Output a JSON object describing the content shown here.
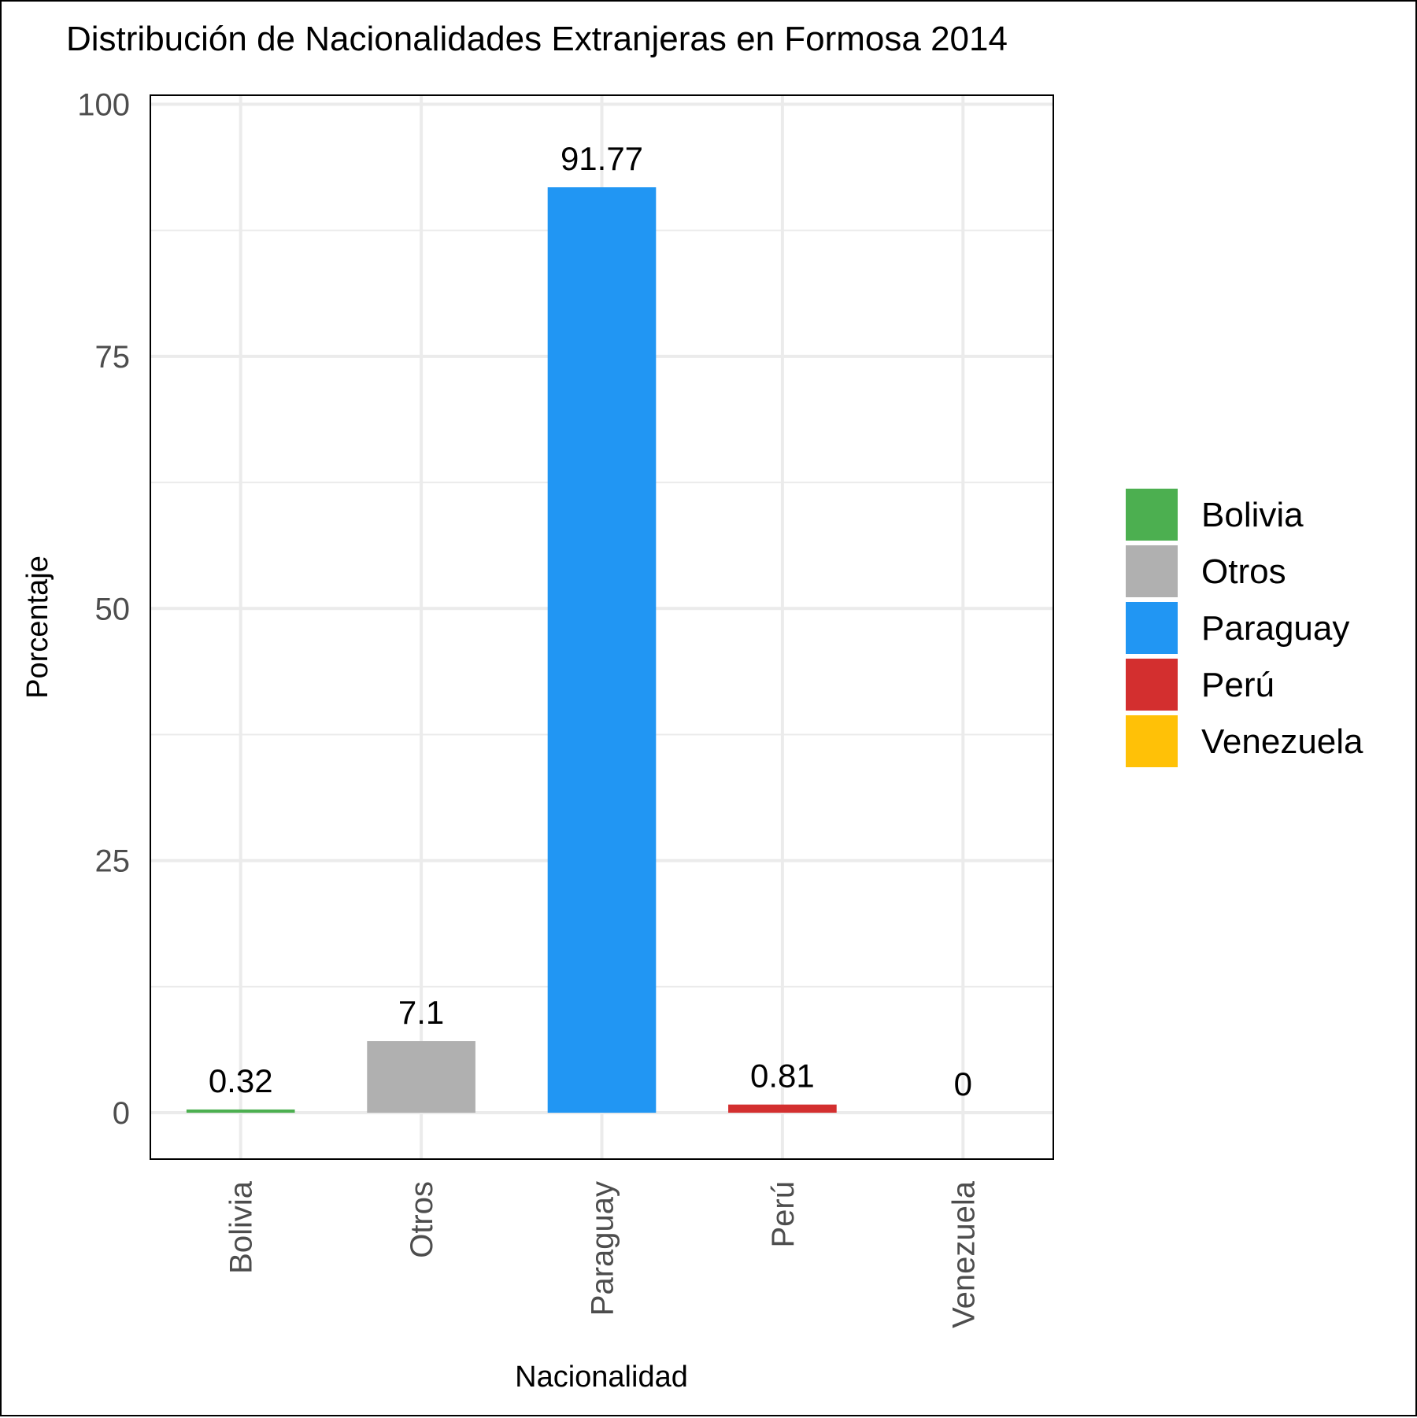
{
  "chart_data": {
    "type": "bar",
    "title": "Distribución de Nacionalidades Extranjeras en Formosa 2014",
    "xlabel": "Nacionalidad",
    "ylabel": "Porcentaje",
    "categories": [
      "Bolivia",
      "Otros",
      "Paraguay",
      "Perú",
      "Venezuela"
    ],
    "values": [
      0.32,
      7.1,
      91.77,
      0.81,
      0
    ],
    "value_labels": [
      "0.32",
      "7.1",
      "91.77",
      "0.81",
      "0"
    ],
    "colors": [
      "#4caf50",
      "#b0b0b0",
      "#2196f3",
      "#d32f2f",
      "#ffc107"
    ],
    "ylim": [
      -4.6,
      100.9
    ],
    "yticks": [
      0,
      25,
      50,
      75,
      100
    ],
    "ytick_labels": [
      "0",
      "25",
      "50",
      "75",
      "100"
    ],
    "grid": true,
    "legend": {
      "position": "right",
      "entries": [
        "Bolivia",
        "Otros",
        "Paraguay",
        "Perú",
        "Venezuela"
      ]
    }
  }
}
